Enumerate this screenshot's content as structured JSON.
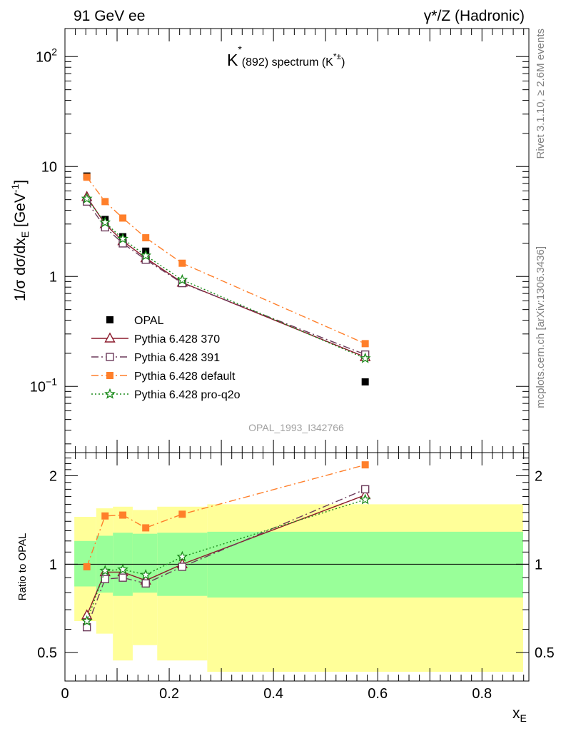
{
  "header": {
    "left": "91 GeV ee",
    "right": "γ*/Z (Hadronic)"
  },
  "side_labels": {
    "rivet": "Rivet 3.1.10, ≥ 2.6M events",
    "mcplots": "mcplots.cern.ch [arXiv:1306.3436]"
  },
  "chart_data": [
    {
      "type": "line",
      "panel": "main",
      "title": "K*(892) spectrum (K*±)",
      "title_parts": {
        "k": "K",
        "star": "*",
        "mass": "(892)",
        "text": " spectrum (K",
        "sup": "*±",
        "close": ")"
      },
      "ylabel": "1/σ dσ/dx_E [GeV⁻1]",
      "ylabel_parts": {
        "main": "1/σ dσ/dx",
        "sub": "E",
        "unit": " [GeV",
        "sup": "-1",
        "close": "]"
      },
      "yscale": "log",
      "ylim": [
        0.025,
        180
      ],
      "xlim": [
        0,
        0.89
      ],
      "watermark": "OPAL_1993_I342766",
      "y_ticks": [
        {
          "value": 0.1,
          "label_base": "10",
          "label_exp": "−1"
        },
        {
          "value": 1,
          "label_base": "1",
          "label_exp": ""
        },
        {
          "value": 10,
          "label_base": "10",
          "label_exp": ""
        },
        {
          "value": 100,
          "label_base": "10",
          "label_exp": "2"
        }
      ],
      "legend_position": "lower-left",
      "series": [
        {
          "name": "OPAL",
          "color": "#000000",
          "marker": "square-filled",
          "line": "none",
          "x": [
            0.042,
            0.077,
            0.111,
            0.155,
            0.225,
            0.576
          ],
          "y": [
            8.2,
            3.3,
            2.3,
            1.7,
            0.88,
            0.11
          ]
        },
        {
          "name": "Pythia 6.428 370",
          "color": "#8b1a2b",
          "marker": "triangle-open",
          "line": "solid",
          "x": [
            0.042,
            0.077,
            0.111,
            0.155,
            0.225,
            0.576
          ],
          "y": [
            5.3,
            3.0,
            2.1,
            1.47,
            0.88,
            0.185
          ]
        },
        {
          "name": "Pythia 6.428 391",
          "color": "#6b3a5a",
          "marker": "square-open",
          "line": "dashdot",
          "x": [
            0.042,
            0.077,
            0.111,
            0.155,
            0.225,
            0.576
          ],
          "y": [
            4.8,
            2.8,
            2.0,
            1.42,
            0.87,
            0.195
          ]
        },
        {
          "name": "Pythia 6.428 default",
          "color": "#ff7f2a",
          "marker": "square-filled",
          "line": "dashdot",
          "x": [
            0.042,
            0.077,
            0.111,
            0.155,
            0.225,
            0.576
          ],
          "y": [
            8.0,
            4.8,
            3.4,
            2.25,
            1.32,
            0.245
          ]
        },
        {
          "name": "Pythia 6.428 pro-q2o",
          "color": "#1a8a1a",
          "marker": "star-open",
          "line": "dotted",
          "x": [
            0.042,
            0.077,
            0.111,
            0.155,
            0.225,
            0.576
          ],
          "y": [
            5.1,
            3.1,
            2.2,
            1.55,
            0.93,
            0.18
          ]
        }
      ]
    },
    {
      "type": "line",
      "panel": "ratio",
      "ylabel": "Ratio to OPAL",
      "xlabel": "x_E",
      "xlabel_parts": {
        "main": "x",
        "sub": "E"
      },
      "yscale": "log",
      "ylim": [
        0.4,
        2.4
      ],
      "xlim": [
        0,
        0.89
      ],
      "x_ticks": [
        {
          "value": 0,
          "label": "0"
        },
        {
          "value": 0.2,
          "label": "0.2"
        },
        {
          "value": 0.4,
          "label": "0.4"
        },
        {
          "value": 0.6,
          "label": "0.6"
        },
        {
          "value": 0.8,
          "label": "0.8"
        }
      ],
      "y_ticks": [
        {
          "value": 0.5,
          "label": "0.5"
        },
        {
          "value": 1,
          "label": "1"
        },
        {
          "value": 2,
          "label": "2"
        }
      ],
      "bands": {
        "bin_edges": [
          0.018,
          0.06,
          0.092,
          0.13,
          0.177,
          0.273,
          0.879
        ],
        "yellow_lo": [
          0.64,
          0.58,
          0.47,
          0.53,
          0.47,
          0.43
        ],
        "yellow_hi": [
          1.45,
          1.55,
          1.57,
          1.53,
          1.57,
          1.6
        ],
        "green_lo": [
          0.84,
          0.8,
          0.78,
          0.8,
          0.78,
          0.77
        ],
        "green_hi": [
          1.2,
          1.25,
          1.28,
          1.27,
          1.28,
          1.29
        ]
      },
      "series": [
        {
          "name": "Pythia 6.428 370",
          "color": "#8b1a2b",
          "marker": "triangle-open",
          "line": "solid",
          "x": [
            0.042,
            0.077,
            0.111,
            0.155,
            0.225,
            0.576
          ],
          "y": [
            0.67,
            0.94,
            0.94,
            0.88,
            1.0,
            1.72
          ]
        },
        {
          "name": "Pythia 6.428 391",
          "color": "#6b3a5a",
          "marker": "square-open",
          "line": "dashdot",
          "x": [
            0.042,
            0.077,
            0.111,
            0.155,
            0.225,
            0.576
          ],
          "y": [
            0.61,
            0.89,
            0.9,
            0.86,
            0.98,
            1.8
          ]
        },
        {
          "name": "Pythia 6.428 default",
          "color": "#ff7f2a",
          "marker": "square-filled",
          "line": "dashdot",
          "x": [
            0.042,
            0.077,
            0.111,
            0.155,
            0.225,
            0.576
          ],
          "y": [
            0.98,
            1.46,
            1.47,
            1.33,
            1.48,
            2.18
          ]
        },
        {
          "name": "Pythia 6.428 pro-q2o",
          "color": "#1a8a1a",
          "marker": "star-open",
          "line": "dotted",
          "x": [
            0.042,
            0.077,
            0.111,
            0.155,
            0.225,
            0.576
          ],
          "y": [
            0.64,
            0.95,
            0.96,
            0.92,
            1.06,
            1.66
          ]
        }
      ]
    }
  ]
}
